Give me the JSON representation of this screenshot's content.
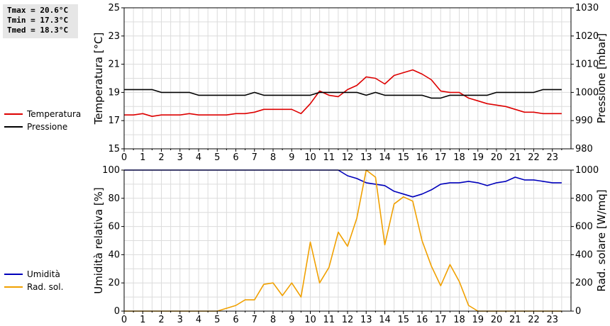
{
  "stats": {
    "tmax": "Tmax = 20.6°C",
    "tmin": "Tmin = 17.3°C",
    "tmed": "Tmed = 18.3°C"
  },
  "legend_top": [
    {
      "label": "Temperatura",
      "color": "#dd0000"
    },
    {
      "label": "Pressione",
      "color": "#000000"
    }
  ],
  "legend_bottom": [
    {
      "label": "Umidità",
      "color": "#0000bb"
    },
    {
      "label": "Rad. sol.",
      "color": "#f0a000"
    }
  ],
  "chart_data": [
    {
      "type": "line",
      "xlim": [
        0,
        24
      ],
      "xticks": [
        "0",
        "1",
        "2",
        "3",
        "4",
        "5",
        "6",
        "7",
        "8",
        "9",
        "10",
        "11",
        "12",
        "13",
        "14",
        "15",
        "16",
        "17",
        "18",
        "19",
        "20",
        "21",
        "22",
        "23"
      ],
      "ylabel": "Temperatura [°C]",
      "ylim": [
        15,
        25
      ],
      "yticks": [
        15,
        17,
        19,
        21,
        23,
        25
      ],
      "y2label": "Pressione [mbar]",
      "y2lim": [
        980,
        1030
      ],
      "y2ticks": [
        980,
        990,
        1000,
        1010,
        1020,
        1030
      ],
      "grid": true,
      "legend": "left",
      "series": [
        {
          "name": "Temperatura",
          "axis": "left",
          "color": "#dd0000",
          "x": [
            0,
            0.5,
            1,
            1.5,
            2,
            2.5,
            3,
            3.5,
            4,
            4.5,
            5,
            5.5,
            6,
            6.5,
            7,
            7.5,
            8,
            8.5,
            9,
            9.5,
            10,
            10.5,
            11,
            11.5,
            12,
            12.5,
            13,
            13.5,
            14,
            14.5,
            15,
            15.5,
            16,
            16.5,
            17,
            17.5,
            18,
            18.5,
            19,
            19.5,
            20,
            20.5,
            21,
            21.5,
            22,
            22.5,
            23,
            23.5
          ],
          "y": [
            17.4,
            17.4,
            17.5,
            17.3,
            17.4,
            17.4,
            17.4,
            17.5,
            17.4,
            17.4,
            17.4,
            17.4,
            17.5,
            17.5,
            17.6,
            17.8,
            17.8,
            17.8,
            17.8,
            17.5,
            18.2,
            19.1,
            18.8,
            18.7,
            19.2,
            19.5,
            20.1,
            20.0,
            19.6,
            20.2,
            20.4,
            20.6,
            20.3,
            19.9,
            19.1,
            19.0,
            19.0,
            18.6,
            18.4,
            18.2,
            18.1,
            18.0,
            17.8,
            17.6,
            17.6,
            17.5,
            17.5,
            17.5
          ]
        },
        {
          "name": "Pressione",
          "axis": "right",
          "color": "#000000",
          "x": [
            0,
            0.5,
            1,
            1.5,
            2,
            2.5,
            3,
            3.5,
            4,
            4.5,
            5,
            5.5,
            6,
            6.5,
            7,
            7.5,
            8,
            8.5,
            9,
            9.5,
            10,
            10.5,
            11,
            11.5,
            12,
            12.5,
            13,
            13.5,
            14,
            14.5,
            15,
            15.5,
            16,
            16.5,
            17,
            17.5,
            18,
            18.5,
            19,
            19.5,
            20,
            20.5,
            21,
            21.5,
            22,
            22.5,
            23,
            23.5
          ],
          "y": [
            1001,
            1001,
            1001,
            1001,
            1000,
            1000,
            1000,
            1000,
            999,
            999,
            999,
            999,
            999,
            999,
            1000,
            999,
            999,
            999,
            999,
            999,
            999,
            1000,
            1000,
            1000,
            1000,
            1000,
            999,
            1000,
            999,
            999,
            999,
            999,
            999,
            998,
            998,
            999,
            999,
            999,
            999,
            999,
            1000,
            1000,
            1000,
            1000,
            1000,
            1001,
            1001,
            1001
          ]
        }
      ]
    },
    {
      "type": "line",
      "xlim": [
        0,
        24
      ],
      "xticks": [
        "0",
        "1",
        "2",
        "3",
        "4",
        "5",
        "6",
        "7",
        "8",
        "9",
        "10",
        "11",
        "12",
        "13",
        "14",
        "15",
        "16",
        "17",
        "18",
        "19",
        "20",
        "21",
        "22",
        "23"
      ],
      "ylabel": "Umidità relativa [%]",
      "ylim": [
        0,
        100
      ],
      "yticks": [
        0,
        20,
        40,
        60,
        80,
        100
      ],
      "y2label": "Rad. solare [W/mq]",
      "y2lim": [
        0,
        1000
      ],
      "y2ticks": [
        0,
        200,
        400,
        600,
        800,
        1000
      ],
      "grid": true,
      "legend": "left",
      "series": [
        {
          "name": "Umidità",
          "axis": "left",
          "color": "#0000bb",
          "x": [
            0,
            11.5,
            12,
            12.5,
            13,
            13.5,
            14,
            14.5,
            15,
            15.5,
            16,
            16.5,
            17,
            17.5,
            18,
            18.5,
            19,
            19.5,
            20,
            20.5,
            21,
            21.5,
            22,
            22.5,
            23,
            23.5
          ],
          "y": [
            100,
            100,
            96,
            94,
            91,
            90,
            89,
            85,
            83,
            81,
            83,
            86,
            90,
            91,
            91,
            92,
            91,
            89,
            91,
            92,
            95,
            93,
            93,
            92,
            91,
            91
          ]
        },
        {
          "name": "Rad. sol.",
          "axis": "right",
          "color": "#f0a000",
          "x": [
            0,
            5,
            5.5,
            6,
            6.5,
            7,
            7.5,
            8,
            8.5,
            9,
            9.5,
            10,
            10.5,
            11,
            11.5,
            12,
            12.5,
            13,
            13.5,
            14,
            14.5,
            15,
            15.5,
            16,
            16.5,
            17,
            17.5,
            18,
            18.5,
            19,
            19.5,
            23.5
          ],
          "y": [
            0,
            0,
            20,
            40,
            80,
            80,
            190,
            200,
            110,
            200,
            100,
            490,
            200,
            310,
            560,
            460,
            660,
            1000,
            950,
            470,
            760,
            810,
            780,
            500,
            320,
            180,
            330,
            210,
            40,
            0,
            0,
            0
          ]
        }
      ]
    }
  ]
}
